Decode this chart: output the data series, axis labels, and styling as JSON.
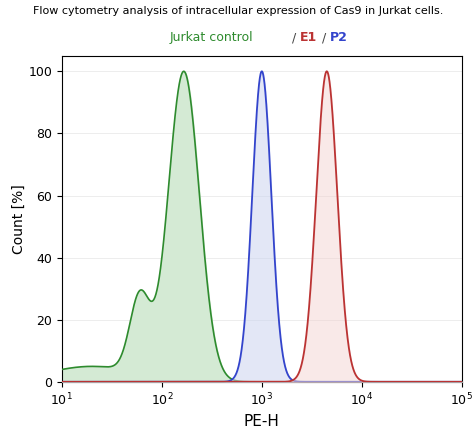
{
  "title_text": "Flow cytometry analysis of intracellular expression of Cas9 in Jurkat cells.",
  "legend_label_green": "Jurkat control",
  "legend_label_e1": "E1",
  "legend_label_p2": "P2",
  "xlabel": "PE-H",
  "ylabel": "Count [%]",
  "xlim": [
    10,
    100000
  ],
  "ylim": [
    0,
    105
  ],
  "yticks": [
    0,
    20,
    40,
    60,
    80,
    100
  ],
  "green_peak_log": 2.22,
  "green_peak_sigma": 0.155,
  "green_shoulder_log": 1.78,
  "green_shoulder_sigma": 0.1,
  "green_shoulder_amp": 0.25,
  "green_baseline_log": 1.3,
  "green_baseline_sigma": 0.45,
  "green_baseline_amp": 0.05,
  "blue_peak_log": 3.0,
  "blue_peak_sigma": 0.095,
  "red_peak_log": 3.65,
  "red_peak_sigma": 0.105,
  "green_fill": "#d4ead4",
  "green_line": "#2e8b2e",
  "blue_fill": "#ccd5f0",
  "blue_line": "#3344cc",
  "red_fill": "#f2d0cc",
  "red_line": "#bb3333",
  "blue_fill_alpha": 0.55,
  "red_fill_alpha": 0.45
}
